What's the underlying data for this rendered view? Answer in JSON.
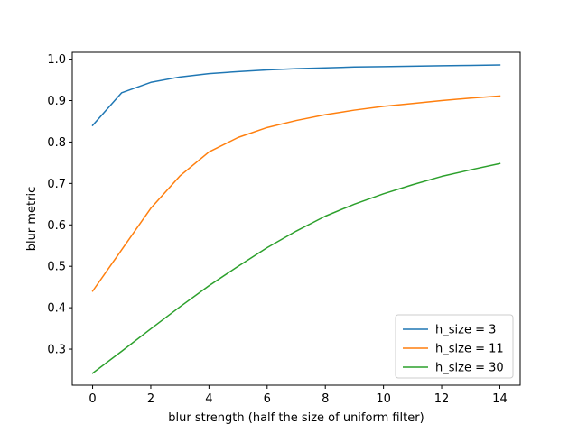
{
  "chart_data": {
    "type": "line",
    "title": "",
    "xlabel": "blur strength (half the size of uniform filter)",
    "ylabel": "blur metric",
    "xlim": [
      -0.7,
      14.7
    ],
    "ylim": [
      0.213,
      1.0165
    ],
    "xticks": [
      0,
      2,
      4,
      6,
      8,
      10,
      12,
      14
    ],
    "yticks": [
      0.3,
      0.4,
      0.5,
      0.6,
      0.7,
      0.8,
      0.9,
      1.0
    ],
    "ytick_labels": [
      "0.3",
      "0.4",
      "0.5",
      "0.6",
      "0.7",
      "0.8",
      "0.9",
      "1.0"
    ],
    "grid": false,
    "legend_position": "lower-right",
    "x": [
      0,
      1,
      2,
      3,
      4,
      5,
      6,
      7,
      8,
      9,
      10,
      11,
      12,
      13,
      14
    ],
    "series": [
      {
        "name": "h_size = 3",
        "color": "#1f77b4",
        "values": [
          0.84,
          0.919,
          0.944,
          0.957,
          0.965,
          0.97,
          0.974,
          0.977,
          0.979,
          0.981,
          0.982,
          0.983,
          0.984,
          0.985,
          0.986
        ]
      },
      {
        "name": "h_size = 11",
        "color": "#ff7f0e",
        "values": [
          0.44,
          0.54,
          0.64,
          0.718,
          0.776,
          0.811,
          0.835,
          0.852,
          0.866,
          0.877,
          0.886,
          0.893,
          0.9,
          0.906,
          0.911
        ]
      },
      {
        "name": "h_size = 30",
        "color": "#2ca02c",
        "values": [
          0.242,
          0.295,
          0.349,
          0.402,
          0.453,
          0.5,
          0.545,
          0.585,
          0.621,
          0.65,
          0.675,
          0.697,
          0.717,
          0.733,
          0.748
        ]
      }
    ]
  }
}
